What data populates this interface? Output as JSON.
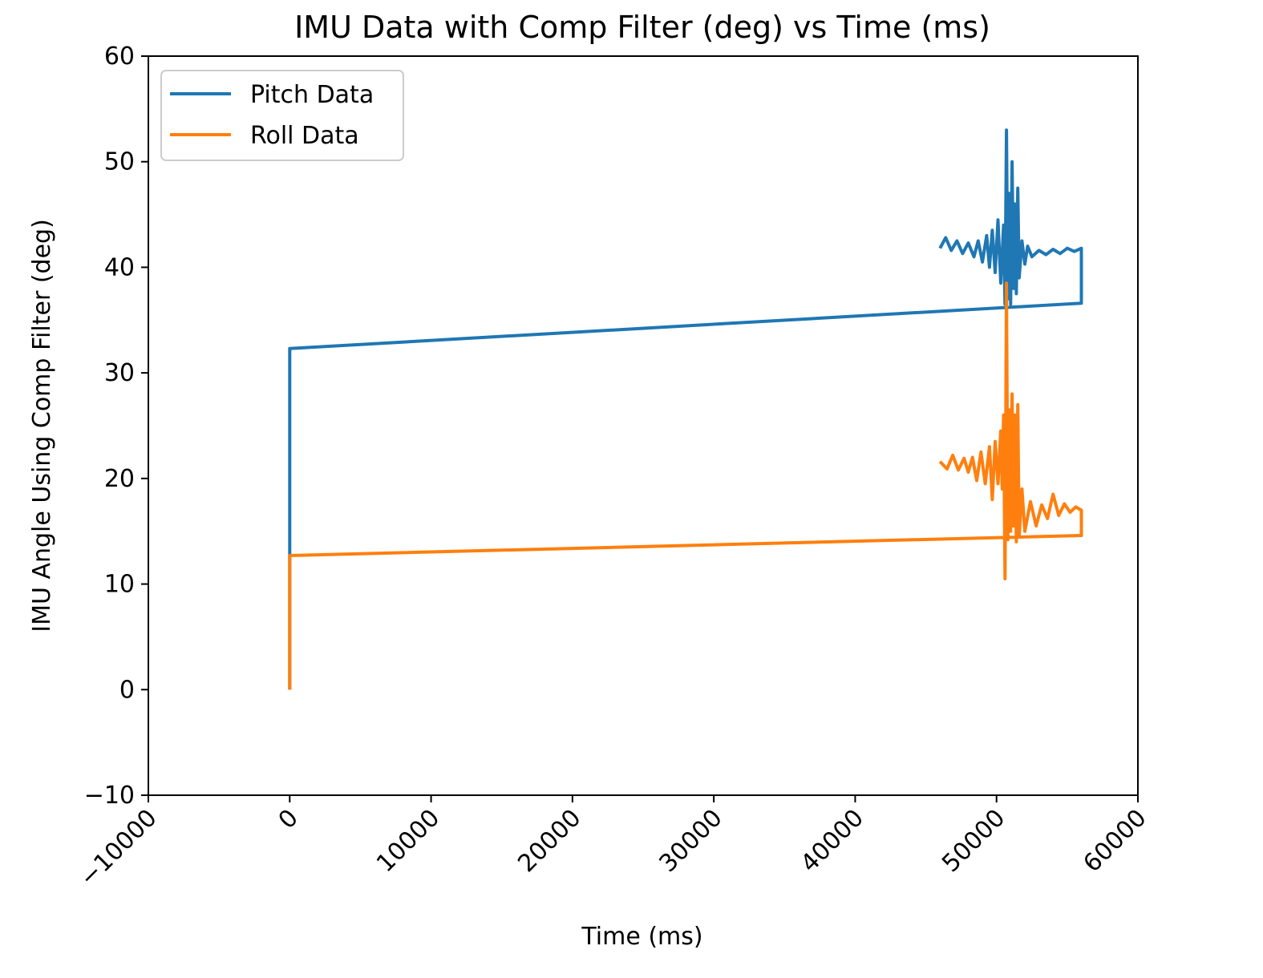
{
  "chart_data": {
    "type": "line",
    "title": "IMU Data with Comp Filter (deg) vs Time (ms)",
    "xlabel": "Time (ms)",
    "ylabel": "IMU Angle Using Comp Filter (deg)",
    "xlim": [
      -10000,
      60000
    ],
    "ylim": [
      -10,
      60
    ],
    "xticks": [
      -10000,
      0,
      10000,
      20000,
      30000,
      40000,
      50000,
      60000
    ],
    "xtick_labels": [
      "−10000",
      "0",
      "10000",
      "20000",
      "30000",
      "40000",
      "50000",
      "60000"
    ],
    "yticks": [
      -10,
      0,
      10,
      20,
      30,
      40,
      50,
      60
    ],
    "ytick_labels": [
      "−10",
      "0",
      "10",
      "20",
      "30",
      "40",
      "50",
      "60"
    ],
    "legend_position": "upper-left",
    "series": [
      {
        "name": "Pitch Data",
        "color": "#1f77b4",
        "points": [
          [
            0,
            0
          ],
          [
            0,
            32.3
          ],
          [
            56000,
            36.6
          ],
          [
            56000,
            41.8
          ],
          [
            55500,
            41.5
          ],
          [
            55000,
            41.8
          ],
          [
            54500,
            41.3
          ],
          [
            54000,
            41.7
          ],
          [
            53500,
            41.2
          ],
          [
            53000,
            41.6
          ],
          [
            52500,
            41.0
          ],
          [
            52200,
            42.0
          ],
          [
            52000,
            40.3
          ],
          [
            51800,
            42.5
          ],
          [
            51600,
            39.0
          ],
          [
            51500,
            47.5
          ],
          [
            51400,
            37.5
          ],
          [
            51300,
            46.0
          ],
          [
            51200,
            38.0
          ],
          [
            51100,
            50.0
          ],
          [
            51000,
            36.5
          ],
          [
            50900,
            47.0
          ],
          [
            50800,
            37.0
          ],
          [
            50700,
            53.0
          ],
          [
            50600,
            36.5
          ],
          [
            50500,
            44.0
          ],
          [
            50300,
            38.5
          ],
          [
            50100,
            44.5
          ],
          [
            49900,
            39.5
          ],
          [
            49700,
            43.5
          ],
          [
            49500,
            40.0
          ],
          [
            49300,
            43.0
          ],
          [
            49000,
            40.5
          ],
          [
            48700,
            42.5
          ],
          [
            48400,
            41.0
          ],
          [
            48000,
            42.3
          ],
          [
            47600,
            41.3
          ],
          [
            47200,
            42.5
          ],
          [
            46800,
            41.6
          ],
          [
            46400,
            42.8
          ],
          [
            46000,
            41.8
          ]
        ]
      },
      {
        "name": "Roll Data",
        "color": "#ff7f0e",
        "points": [
          [
            0,
            0
          ],
          [
            0,
            12.7
          ],
          [
            56000,
            14.6
          ],
          [
            56000,
            17.0
          ],
          [
            55600,
            17.3
          ],
          [
            55200,
            16.8
          ],
          [
            54800,
            17.6
          ],
          [
            54400,
            16.5
          ],
          [
            54000,
            18.5
          ],
          [
            53600,
            16.2
          ],
          [
            53200,
            17.5
          ],
          [
            52800,
            15.5
          ],
          [
            52400,
            17.8
          ],
          [
            52000,
            15.0
          ],
          [
            51800,
            19.0
          ],
          [
            51600,
            14.5
          ],
          [
            51500,
            27.0
          ],
          [
            51400,
            14.0
          ],
          [
            51300,
            26.0
          ],
          [
            51200,
            15.5
          ],
          [
            51100,
            28.0
          ],
          [
            51000,
            15.0
          ],
          [
            50900,
            26.5
          ],
          [
            50800,
            14.2
          ],
          [
            50700,
            38.5
          ],
          [
            50600,
            10.5
          ],
          [
            50500,
            26.0
          ],
          [
            50400,
            19.0
          ],
          [
            50300,
            24.5
          ],
          [
            50100,
            19.5
          ],
          [
            49900,
            23.5
          ],
          [
            49700,
            18.0
          ],
          [
            49500,
            23.0
          ],
          [
            49200,
            19.5
          ],
          [
            48900,
            22.5
          ],
          [
            48600,
            19.8
          ],
          [
            48300,
            22.0
          ],
          [
            48000,
            20.6
          ],
          [
            47700,
            21.9
          ],
          [
            47300,
            20.8
          ],
          [
            46900,
            22.2
          ],
          [
            46500,
            20.9
          ],
          [
            46000,
            21.6
          ]
        ]
      }
    ]
  }
}
